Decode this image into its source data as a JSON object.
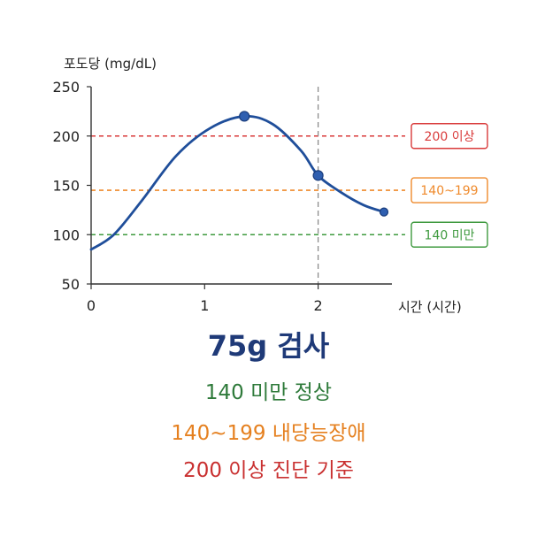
{
  "chart_data": {
    "type": "line",
    "ylabel": "포도당 (mg/dL)",
    "xlabel": "시간 (시간)",
    "xlim": [
      0,
      2.65
    ],
    "ylim": [
      50,
      250
    ],
    "x_ticks": [
      0,
      1,
      2
    ],
    "y_ticks": [
      50,
      100,
      150,
      200,
      250
    ],
    "series": [
      {
        "color": "#1f4e9a",
        "curve": [
          {
            "x": 0.0,
            "y": 85
          },
          {
            "x": 0.2,
            "y": 100
          },
          {
            "x": 0.45,
            "y": 135
          },
          {
            "x": 0.75,
            "y": 180
          },
          {
            "x": 1.05,
            "y": 208
          },
          {
            "x": 1.35,
            "y": 220
          },
          {
            "x": 1.6,
            "y": 212
          },
          {
            "x": 1.85,
            "y": 185
          },
          {
            "x": 2.0,
            "y": 160
          },
          {
            "x": 2.2,
            "y": 143
          },
          {
            "x": 2.4,
            "y": 130
          },
          {
            "x": 2.58,
            "y": 123
          }
        ],
        "markers": [
          {
            "x": 1.35,
            "y": 220
          },
          {
            "x": 2.0,
            "y": 160
          },
          {
            "x": 2.58,
            "y": 123
          }
        ]
      }
    ],
    "thresholds": [
      {
        "y": 200,
        "label": "200 이상",
        "color": "#d93a3a"
      },
      {
        "y": 145,
        "label": "140~199",
        "color": "#ef8a2c"
      },
      {
        "y": 100,
        "label": "140 미만",
        "color": "#3f9a3f"
      }
    ],
    "vline": {
      "x": 2.0,
      "color": "#8a8a8a"
    }
  },
  "captions": {
    "headline": {
      "text": "75g 검사",
      "color": "#1f3a78"
    },
    "normal": {
      "text": "140 미만 정상",
      "color": "#2e7a3a"
    },
    "impaired": {
      "text": "140~199 내당능장애",
      "color": "#e5801f"
    },
    "diagnosis": {
      "text": "200 이상 진단 기준",
      "color": "#c93030"
    }
  }
}
